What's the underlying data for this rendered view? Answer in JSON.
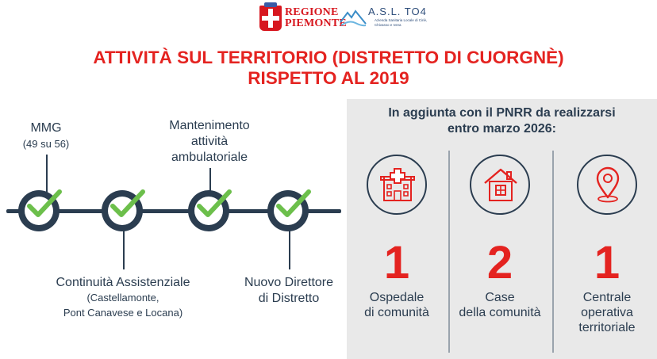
{
  "header": {
    "regione_line1": "REGIONE",
    "regione_line2": "PIEMONTE",
    "asl_title": "A.S.L. TO4",
    "asl_sub": "Azienda Sanitaria Locale di Ciriè, Chivasso e Ivrea"
  },
  "title": {
    "line1": "ATTIVITÀ SUL TERRITORIO (DISTRETTO DI CUORGNÈ)",
    "line2": "RISPETTO AL 2019"
  },
  "timeline": {
    "mmg": "MMG",
    "mmg_sub": "(49 su 56)",
    "mantenimento_1": "Mantenimento",
    "mantenimento_2": "attività",
    "mantenimento_3": "ambulatoriale",
    "continuita": "Continuità Assistenziale",
    "continuita_sub1": "(Castellamonte,",
    "continuita_sub2": "Pont Canavese e Locana)",
    "direttore_1": "Nuovo Direttore",
    "direttore_2": "di Distretto"
  },
  "pnrr": {
    "heading_1": "In aggiunta con il PNRR da realizzarsi",
    "heading_2": "entro marzo 2026:",
    "items": [
      {
        "icon": "hospital-icon",
        "number": "1",
        "label_1": "Ospedale",
        "label_2": "di comunità",
        "label_3": ""
      },
      {
        "icon": "house-icon",
        "number": "2",
        "label_1": "Case",
        "label_2": "della comunità",
        "label_3": ""
      },
      {
        "icon": "location-pin-icon",
        "number": "1",
        "label_1": "Centrale",
        "label_2": "operativa",
        "label_3": "territoriale"
      }
    ]
  },
  "colors": {
    "accent_red": "#e42320",
    "navy": "#2b3d50",
    "check_green": "#6cbf4b",
    "panel_grey": "#e9e9e9"
  }
}
